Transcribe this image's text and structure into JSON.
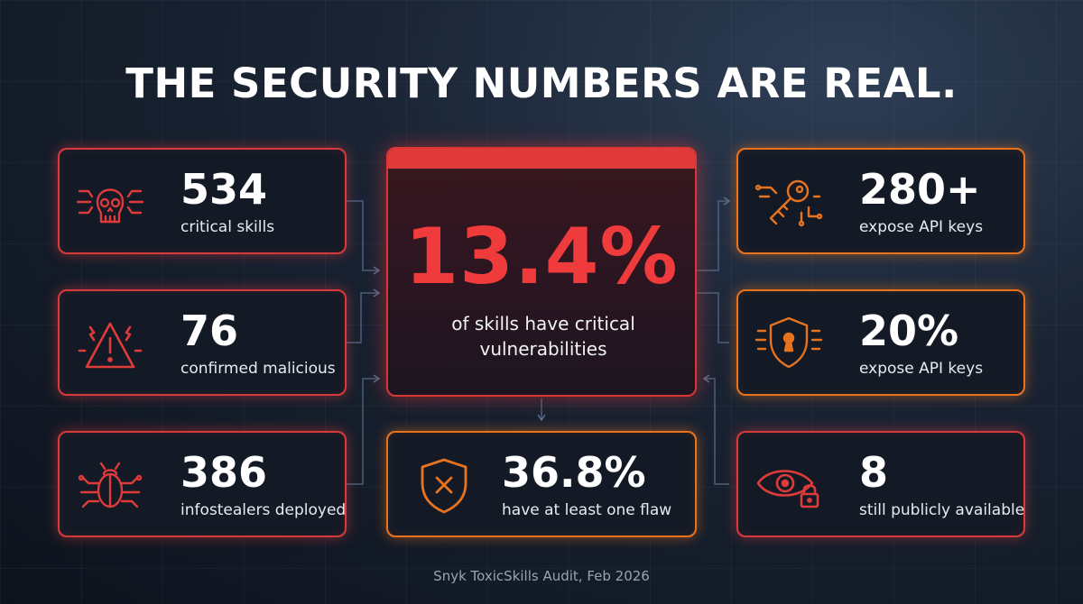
{
  "title": "THE SECURITY NUMBERS ARE REAL.",
  "center": {
    "value": "13.4%",
    "label": "of skills have critical vulnerabilities"
  },
  "left_cards": [
    {
      "value": "534",
      "label": "critical skills",
      "icon": "skull-icon"
    },
    {
      "value": "76",
      "label": "confirmed malicious",
      "icon": "warning-icon"
    },
    {
      "value": "386",
      "label": "infostealers deployed",
      "icon": "bug-icon"
    }
  ],
  "right_cards": [
    {
      "value": "280+",
      "label": "expose API keys",
      "icon": "key-icon"
    },
    {
      "value": "20%",
      "label": "expose API keys",
      "icon": "shield-lock-icon"
    },
    {
      "value": "8",
      "label": "still publicly available",
      "icon": "eye-lock-icon"
    }
  ],
  "bottom_card": {
    "value": "36.8%",
    "label": "have at least one flaw",
    "icon": "shield-x-icon"
  },
  "footer": "Snyk ToxicSkills Audit, Feb 2026",
  "colors": {
    "red": "#d63a3a",
    "orange": "#e8731e",
    "background": "#141c28"
  }
}
